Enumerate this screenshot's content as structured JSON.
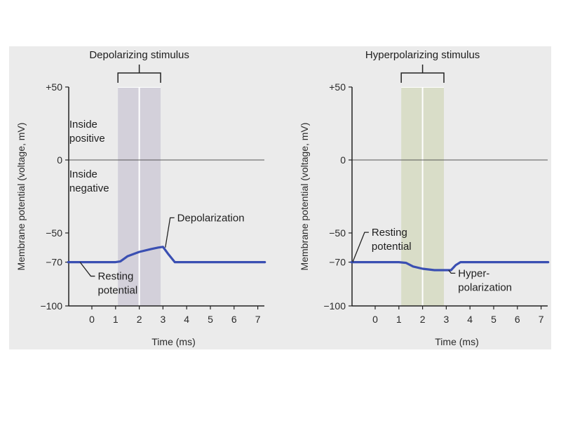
{
  "chart_data": [
    {
      "type": "line",
      "stimulus_label": "Depolarizing stimulus",
      "xlabel": "Time (ms)",
      "ylabel": "Membrane potential (voltage, mV)",
      "xticks": [
        "0",
        "1",
        "2",
        "3",
        "4",
        "5",
        "6",
        "7"
      ],
      "yticks": [
        {
          "value": 50,
          "label": "+50"
        },
        {
          "value": 0,
          "label": "0"
        },
        {
          "value": -50,
          "label": "−50"
        },
        {
          "value": -70,
          "label": "−70"
        },
        {
          "value": -100,
          "label": "−100"
        }
      ],
      "xlim": [
        -1,
        7.3
      ],
      "ylim": [
        -100,
        50
      ],
      "stimulus_window": [
        1.1,
        2.9
      ],
      "reference_line_y": 0,
      "series": [
        {
          "x": [
            -1,
            0,
            1,
            1.2,
            1.5,
            2,
            2.5,
            2.8,
            3,
            3.2,
            3.5,
            4,
            5,
            6,
            7.3
          ],
          "y": [
            -70,
            -70,
            -70,
            -69.5,
            -66,
            -63,
            -61,
            -60,
            -59.5,
            -64,
            -70,
            -70,
            -70,
            -70,
            -70
          ]
        }
      ],
      "annotations": [
        {
          "text": [
            "Inside",
            "positive"
          ],
          "x": -0.95,
          "y": 22
        },
        {
          "text": [
            "Inside",
            "negative"
          ],
          "x": -0.95,
          "y": -12
        },
        {
          "text": [
            "Depolarization"
          ],
          "x": 3.6,
          "y": -42,
          "pointer": [
            3.1,
            -60
          ]
        },
        {
          "text": [
            "Resting",
            "potential"
          ],
          "x": 0.25,
          "y": -82,
          "pointer": [
            -0.5,
            -70
          ]
        }
      ],
      "colors": {
        "line": "#3a4fb2",
        "stimulus_band": "#d3d0da"
      }
    },
    {
      "type": "line",
      "stimulus_label": "Hyperpolarizing stimulus",
      "xlabel": "Time (ms)",
      "ylabel": "Membrane potential (voltage, mV)",
      "xticks": [
        "0",
        "1",
        "2",
        "3",
        "4",
        "5",
        "6",
        "7"
      ],
      "yticks": [
        {
          "value": 50,
          "label": "+50"
        },
        {
          "value": 0,
          "label": "0"
        },
        {
          "value": -50,
          "label": "−50"
        },
        {
          "value": -70,
          "label": "−70"
        },
        {
          "value": -100,
          "label": "−100"
        }
      ],
      "xlim": [
        -1,
        7.3
      ],
      "ylim": [
        -100,
        50
      ],
      "stimulus_window": [
        1.1,
        2.9
      ],
      "reference_line_y": 0,
      "series": [
        {
          "x": [
            -1,
            0,
            1,
            1.3,
            1.6,
            2,
            2.5,
            2.9,
            3.2,
            3.4,
            3.6,
            4,
            5,
            6,
            7.3
          ],
          "y": [
            -70,
            -70,
            -70,
            -70.5,
            -73,
            -74.5,
            -75.5,
            -75.5,
            -75.5,
            -72,
            -70,
            -70,
            -70,
            -70,
            -70
          ]
        }
      ],
      "annotations": [
        {
          "text": [
            "Resting",
            "potential"
          ],
          "x": -0.15,
          "y": -52,
          "pointer": [
            -0.95,
            -70
          ]
        },
        {
          "text": [
            "Hyper-",
            "polarization"
          ],
          "x": 3.5,
          "y": -80,
          "pointer": [
            3.1,
            -75.5
          ]
        }
      ],
      "colors": {
        "line": "#3a4fb2",
        "stimulus_band": "#d9ddc8"
      }
    }
  ]
}
